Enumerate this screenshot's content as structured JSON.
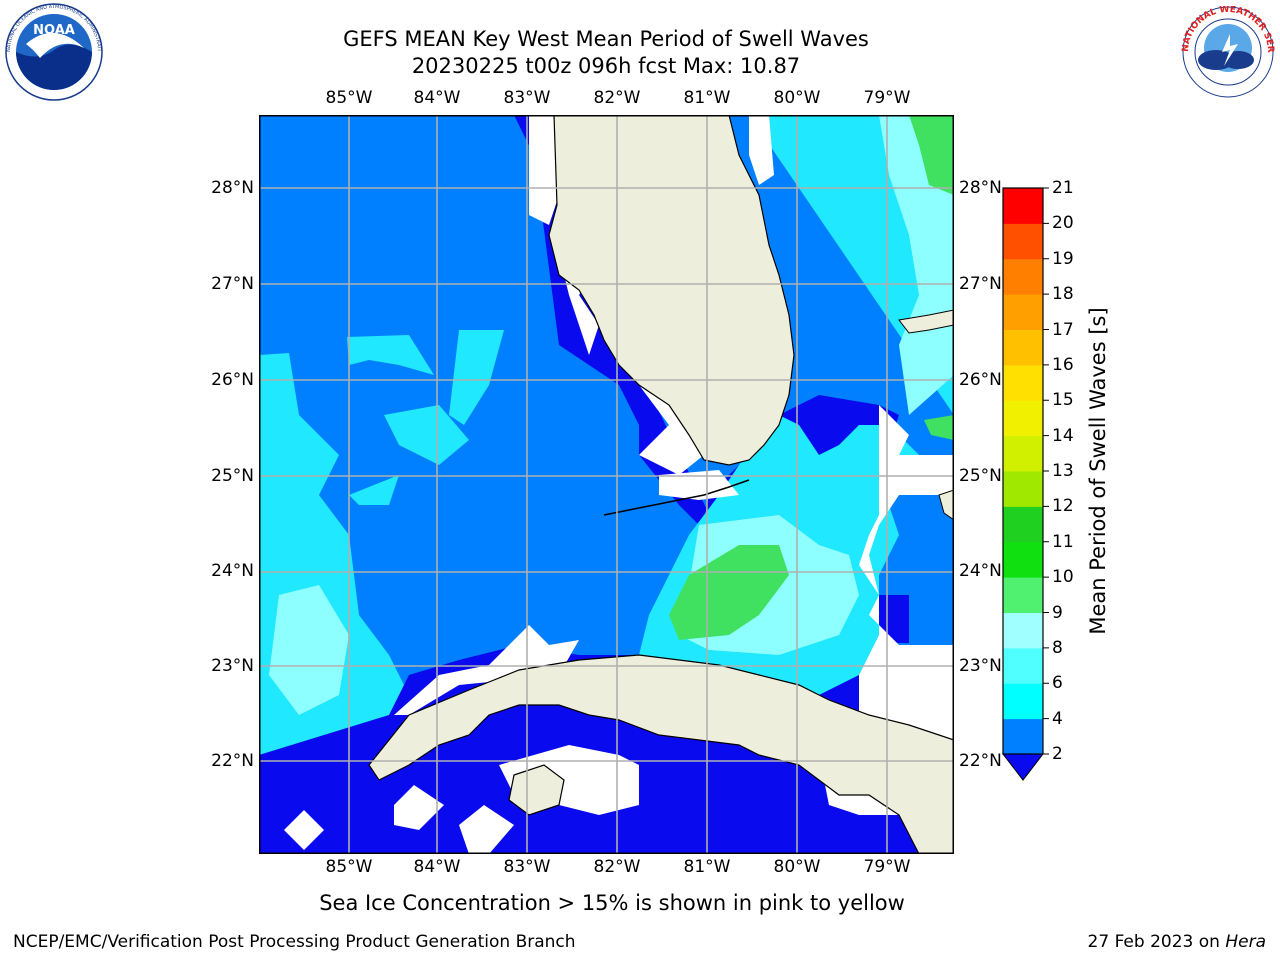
{
  "header": {
    "title_line1": "GEFS MEAN Key West Mean Period of Swell Waves",
    "title_line2": "20230225 t00z 096h fcst   Max: 10.87"
  },
  "logos": {
    "left": {
      "text": "NOAA",
      "ring_text": "NATIONAL OCEANIC AND ATMOSPHERIC ADMINISTRATION · U.S. DEPARTMENT OF COMMERCE"
    },
    "right": {
      "ring_text": "NATIONAL WEATHER SERVICE"
    }
  },
  "map": {
    "lon_labels": [
      "85°W",
      "84°W",
      "83°W",
      "82°W",
      "81°W",
      "80°W",
      "79°W"
    ],
    "lat_labels": [
      "28°N",
      "27°N",
      "26°N",
      "25°N",
      "24°N",
      "23°N",
      "22°N"
    ],
    "land_color": "#eeeedc",
    "colors": {
      "lt4": "#0a0aef",
      "b4_6": "#0080ff",
      "b6_8": "#20e8ff",
      "b8_10": "#8effff",
      "b10_12": "#40e060",
      "no_data": "#ffffff",
      "grid": "#b0b0b0"
    }
  },
  "colorbar": {
    "title": "Mean Period of Swell Waves [s]",
    "ticks": [
      "2",
      "4",
      "6",
      "8",
      "9",
      "10",
      "11",
      "12",
      "13",
      "14",
      "15",
      "16",
      "17",
      "18",
      "19",
      "20",
      "21"
    ],
    "colors": [
      "#0a0aef",
      "#0080ff",
      "#00ffff",
      "#50ffff",
      "#a0ffff",
      "#50f070",
      "#10e010",
      "#20d020",
      "#a0e800",
      "#d0f000",
      "#f0f000",
      "#ffe000",
      "#ffc000",
      "#ffa000",
      "#ff8000",
      "#ff5000",
      "#ff0000"
    ]
  },
  "subnote": "Sea Ice Concentration > 15% is shown in pink to yellow",
  "footer": {
    "left": "NCEP/EMC/Verification Post Processing Product Generation Branch",
    "right_prefix": "27 Feb 2023 on ",
    "right_machine": "Hera"
  }
}
